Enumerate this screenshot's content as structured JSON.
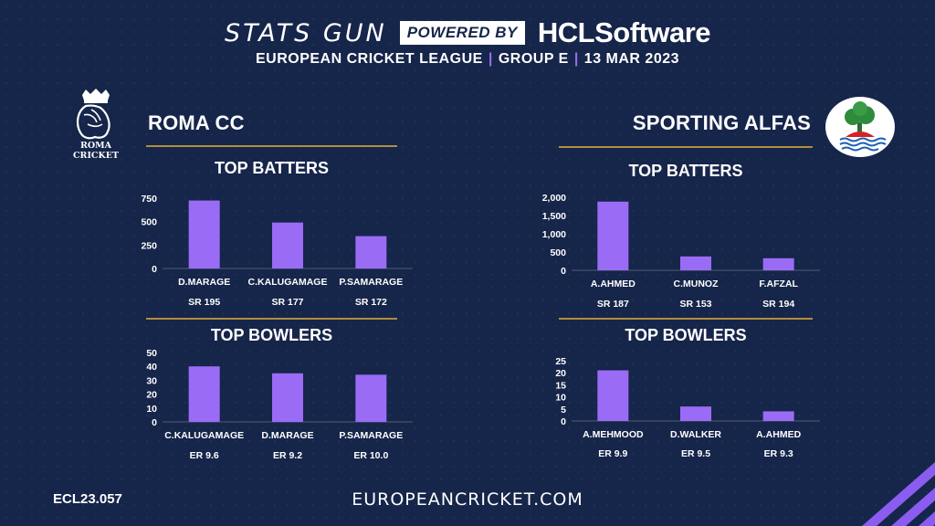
{
  "header": {
    "brand_left": "STATS GUN",
    "powered_by": "POWERED BY",
    "brand_right": "HCLSoftware",
    "league": "EUROPEAN CRICKET LEAGUE",
    "group": "GROUP  E",
    "date": "13 MAR 2023"
  },
  "teams": {
    "left": {
      "name": "ROMA CC",
      "logo_text_1": "ROMA",
      "logo_text_2": "CRICKET"
    },
    "right": {
      "name": "SPORTING ALFAS"
    }
  },
  "footer": {
    "code": "ECL23.057",
    "website": "EUROPEANCRICKET.COM"
  },
  "colors": {
    "bar": "#9a6cf5",
    "background": "#16254a",
    "rule": "#b08d3e"
  },
  "chart_data": [
    {
      "id": "roma-batters",
      "type": "bar",
      "title": "TOP BATTERS",
      "categories": [
        "D.MARAGE",
        "C.KALUGAMAGE",
        "P.SAMARAGE"
      ],
      "values": [
        725,
        490,
        345
      ],
      "stats": [
        "SR 195",
        "SR 177",
        "SR 172"
      ],
      "ylim": [
        0,
        750
      ],
      "ticks": [
        0,
        250,
        500,
        750
      ],
      "tick_labels": [
        "0",
        "250",
        "500",
        "750"
      ]
    },
    {
      "id": "roma-bowlers",
      "type": "bar",
      "title": "TOP BOWLERS",
      "categories": [
        "C.KALUGAMAGE",
        "D.MARAGE",
        "P.SAMARAGE"
      ],
      "values": [
        40,
        35,
        34
      ],
      "stats": [
        "ER 9.6",
        "ER 9.2",
        "ER 10.0"
      ],
      "ylim": [
        0,
        50
      ],
      "ticks": [
        0,
        10,
        20,
        30,
        40,
        50
      ],
      "tick_labels": [
        "0",
        "10",
        "20",
        "30",
        "40",
        "50"
      ]
    },
    {
      "id": "alfas-batters",
      "type": "bar",
      "title": "TOP BATTERS",
      "categories": [
        "A.AHMED",
        "C.MUNOZ",
        "F.AFZAL"
      ],
      "values": [
        1880,
        380,
        330
      ],
      "stats": [
        "SR 187",
        "SR 153",
        "SR 194"
      ],
      "ylim": [
        0,
        2000
      ],
      "ticks": [
        0,
        500,
        1000,
        1500,
        2000
      ],
      "tick_labels": [
        "0",
        "500",
        "1,000",
        "1,500",
        "2,000"
      ]
    },
    {
      "id": "alfas-bowlers",
      "type": "bar",
      "title": "TOP BOWLERS",
      "categories": [
        "A.MEHMOOD",
        "D.WALKER",
        "A.AHMED"
      ],
      "values": [
        21,
        6,
        4
      ],
      "stats": [
        "ER 9.9",
        "ER 9.5",
        "ER 9.3"
      ],
      "ylim": [
        0,
        25
      ],
      "ticks": [
        0,
        5,
        10,
        15,
        20,
        25
      ],
      "tick_labels": [
        "0",
        "5",
        "10",
        "15",
        "20",
        "25"
      ]
    }
  ]
}
